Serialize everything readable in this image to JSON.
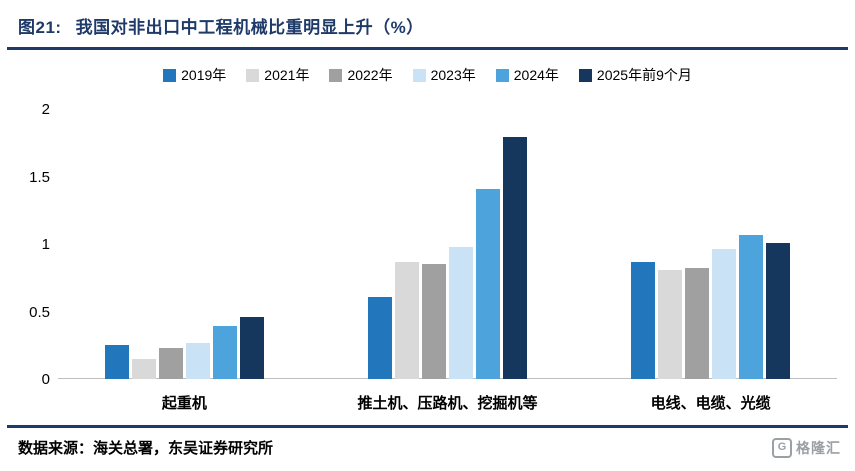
{
  "header": {
    "title_prefix": "图21:",
    "title": "我国对非出口中工程机械比重明显上升（%）"
  },
  "footer": {
    "source": "数据来源：海关总署，东吴证券研究所"
  },
  "watermark": {
    "icon_letter": "G",
    "text": "格隆汇"
  },
  "colors": {
    "accent_navy": "#1e3a68",
    "axis_line": "#bfbfbf"
  },
  "chart_data": {
    "type": "bar",
    "categories": [
      "起重机",
      "推土机、压路机、挖掘机等",
      "电线、电缆、光缆"
    ],
    "series": [
      {
        "name": "2019年",
        "color": "#2176bc",
        "values": [
          0.25,
          0.61,
          0.87
        ]
      },
      {
        "name": "2021年",
        "color": "#d9d9d9",
        "values": [
          0.15,
          0.87,
          0.81
        ]
      },
      {
        "name": "2022年",
        "color": "#a0a0a0",
        "values": [
          0.23,
          0.85,
          0.82
        ]
      },
      {
        "name": "2023年",
        "color": "#c9e2f6",
        "values": [
          0.27,
          0.98,
          0.96
        ]
      },
      {
        "name": "2024年",
        "color": "#4da4dc",
        "values": [
          0.39,
          1.41,
          1.07
        ]
      },
      {
        "name": "2025年前9个月",
        "color": "#16375d",
        "values": [
          0.46,
          1.79,
          1.01
        ]
      }
    ],
    "title": "我国对非出口中工程机械比重明显上升（%）",
    "xlabel": "",
    "ylabel": "",
    "ylim": [
      0,
      2
    ],
    "yticks": [
      "0",
      "0.5",
      "1",
      "1.5",
      "2"
    ],
    "grid": false,
    "legend_position": "top"
  }
}
